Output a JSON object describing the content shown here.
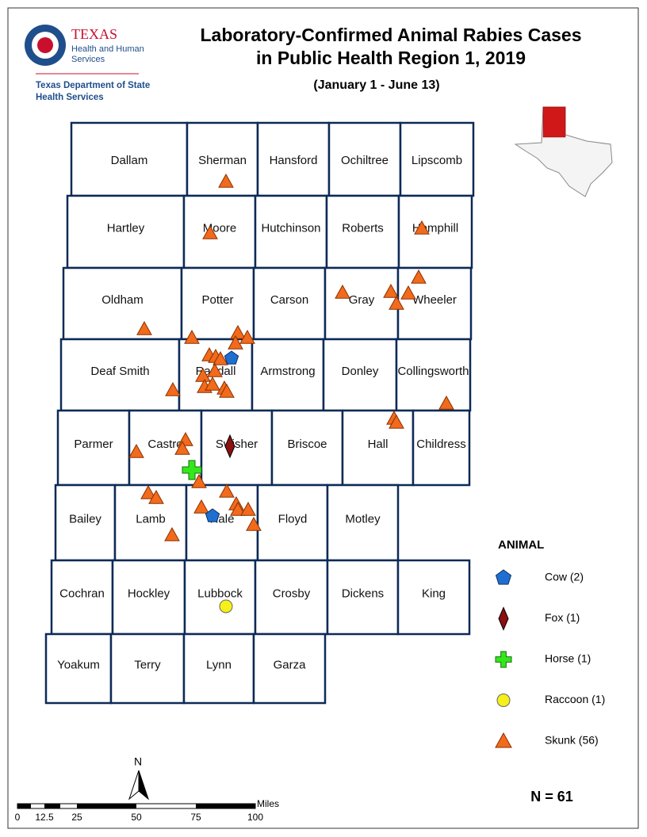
{
  "header": {
    "logo": [
      "TEXAS",
      "Health and Human",
      "Services"
    ],
    "agency": [
      "Texas Department of State",
      "Health Services"
    ]
  },
  "title": [
    "Laboratory-Confirmed Animal Rabies Cases",
    "in Public Health Region 1, 2019"
  ],
  "subtitle": "(January 1 - June 13)",
  "counties": [
    "Dallam",
    "Sherman",
    "Hansford",
    "Ochiltree",
    "Lipscomb",
    "Hartley",
    "Moore",
    "Hutchinson",
    "Roberts",
    "Hemphill",
    "Oldham",
    "Potter",
    "Carson",
    "Gray",
    "Wheeler",
    "Deaf Smith",
    "Randall",
    "Armstrong",
    "Donley",
    "Collingsworth",
    "Parmer",
    "Castro",
    "Swisher",
    "Briscoe",
    "Hall",
    "Childress",
    "Bailey",
    "Lamb",
    "Hale",
    "Floyd",
    "Motley",
    "Cochran",
    "Hockley",
    "Lubbock",
    "Crosby",
    "Dickens",
    "King",
    "Yoakum",
    "Terry",
    "Lynn",
    "Garza"
  ],
  "legend": {
    "title": "ANIMAL",
    "items": [
      "Cow  (2)",
      "Fox  (1)",
      "Horse  (1)",
      "Raccoon  (1)",
      "Skunk  (56)"
    ]
  },
  "north": "N",
  "scale": {
    "unit": "Miles",
    "labels": [
      "0",
      "12.5",
      "25",
      "50",
      "75",
      "100"
    ]
  },
  "total": "N = 61"
}
